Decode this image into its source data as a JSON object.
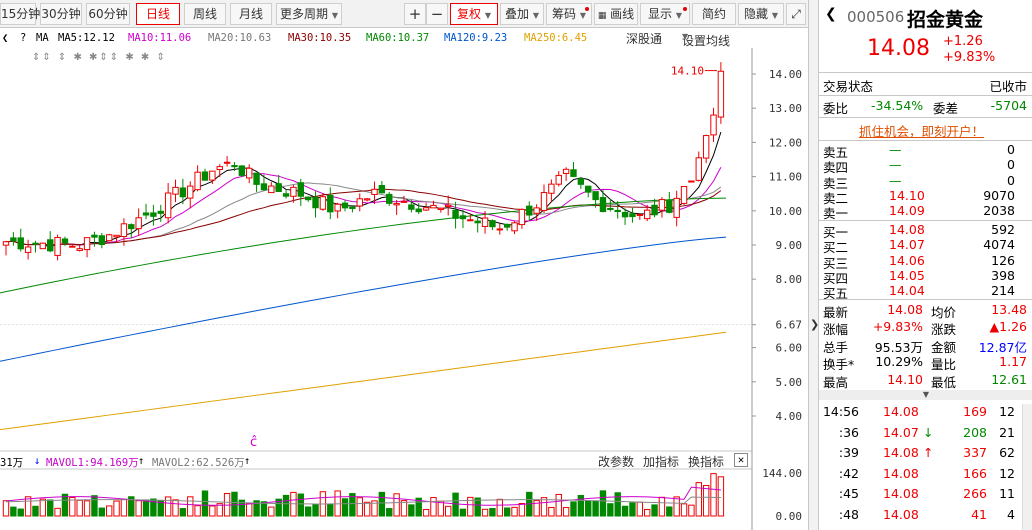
{
  "toolbar": {
    "periods": [
      "15分钟",
      "30分钟",
      "60分钟",
      "日线",
      "周线",
      "月线",
      "更多周期"
    ],
    "active_period": "日线",
    "plus": "+",
    "minus": "−",
    "buttons": [
      "复权",
      "叠加",
      "筹码",
      "画线",
      "显示",
      "简约",
      "隐藏"
    ]
  },
  "ma_legend": {
    "label": "MA",
    "items": [
      {
        "text": "MA5:12.12",
        "color": "#000000"
      },
      {
        "text": "MA10:11.06",
        "color": "#cc00cc"
      },
      {
        "text": "MA20:10.63",
        "color": "#777777"
      },
      {
        "text": "MA30:10.35",
        "color": "#880000"
      },
      {
        "text": "MA60:10.37",
        "color": "#008800"
      },
      {
        "text": "MA120:9.23",
        "color": "#0055cc"
      },
      {
        "text": "MA250:6.45",
        "color": "#e0a000"
      }
    ],
    "market": "深股通",
    "settings": "设置均线"
  },
  "chart_data": {
    "type": "candlestick",
    "y_ticks": [
      14.0,
      13.0,
      12.0,
      11.0,
      10.0,
      9.0,
      8.0,
      6.67,
      6.0,
      5.0,
      4.0
    ],
    "price_range": [
      3.5,
      14.2
    ],
    "max_label": "14.10",
    "vol_ticks": [
      "144.00",
      "0.00"
    ],
    "markers": {
      "top": "⇕⇕ ⇕ ✱ ✱⇕⇕ ✱ ✱ ⇕",
      "bottom": "ĉ"
    }
  },
  "vol_legend": {
    "head": "31万",
    "items": [
      {
        "text": "MAVOL1:94.169万",
        "color": "#cc00cc"
      },
      {
        "text": "MAVOL2:62.526万",
        "color": "#777777"
      }
    ],
    "buttons": [
      "改参数",
      "加指标",
      "换指标"
    ]
  },
  "quote": {
    "code": "000506",
    "name": "招金黄金",
    "price": "14.08",
    "change": "+1.26",
    "change_pct": "+9.83%",
    "status_label": "交易状态",
    "status_value": "已收市",
    "ratio_label": "委比",
    "ratio_value": "-34.54%",
    "diff_label": "委差",
    "diff_value": "-5704",
    "promo": "抓住机会，即刻开户！"
  },
  "orderbook": {
    "asks": [
      {
        "label": "卖五",
        "price": "—",
        "vol": "0"
      },
      {
        "label": "卖四",
        "price": "—",
        "vol": "0"
      },
      {
        "label": "卖三",
        "price": "—",
        "vol": "0"
      },
      {
        "label": "卖二",
        "price": "14.10",
        "vol": "9070"
      },
      {
        "label": "卖一",
        "price": "14.09",
        "vol": "2038"
      }
    ],
    "bids": [
      {
        "label": "买一",
        "price": "14.08",
        "vol": "592"
      },
      {
        "label": "买二",
        "price": "14.07",
        "vol": "4074"
      },
      {
        "label": "买三",
        "price": "14.06",
        "vol": "126"
      },
      {
        "label": "买四",
        "price": "14.05",
        "vol": "398"
      },
      {
        "label": "买五",
        "price": "14.04",
        "vol": "214"
      }
    ]
  },
  "stats": [
    {
      "l1": "最新",
      "v1": "14.08",
      "l2": "均价",
      "v2": "13.48"
    },
    {
      "l1": "涨幅",
      "v1": "+9.83%",
      "l2": "涨跌",
      "v2": "▲1.26"
    },
    {
      "l1": "总手",
      "v1": "95.53万",
      "l2": "金额",
      "v2": "12.87亿"
    },
    {
      "l1": "换手*",
      "v1": "10.29%",
      "l2": "量比",
      "v2": "1.17"
    },
    {
      "l1": "最高",
      "v1": "14.10",
      "l2": "最低",
      "v2": "12.61"
    }
  ],
  "ticks": [
    {
      "time": "14:56",
      "price": "14.08",
      "arrow": "",
      "vol": "169",
      "num": "12"
    },
    {
      "time": ":36",
      "price": "14.07",
      "arrow": "↓",
      "vol": "208",
      "num": "21"
    },
    {
      "time": ":39",
      "price": "14.08",
      "arrow": "↑",
      "vol": "337",
      "num": "62"
    },
    {
      "time": ":42",
      "price": "14.08",
      "arrow": "",
      "vol": "166",
      "num": "12"
    },
    {
      "time": ":45",
      "price": "14.08",
      "arrow": "",
      "vol": "266",
      "num": "11"
    },
    {
      "time": ":48",
      "price": "14.08",
      "arrow": "",
      "vol": "41",
      "num": "4"
    }
  ]
}
